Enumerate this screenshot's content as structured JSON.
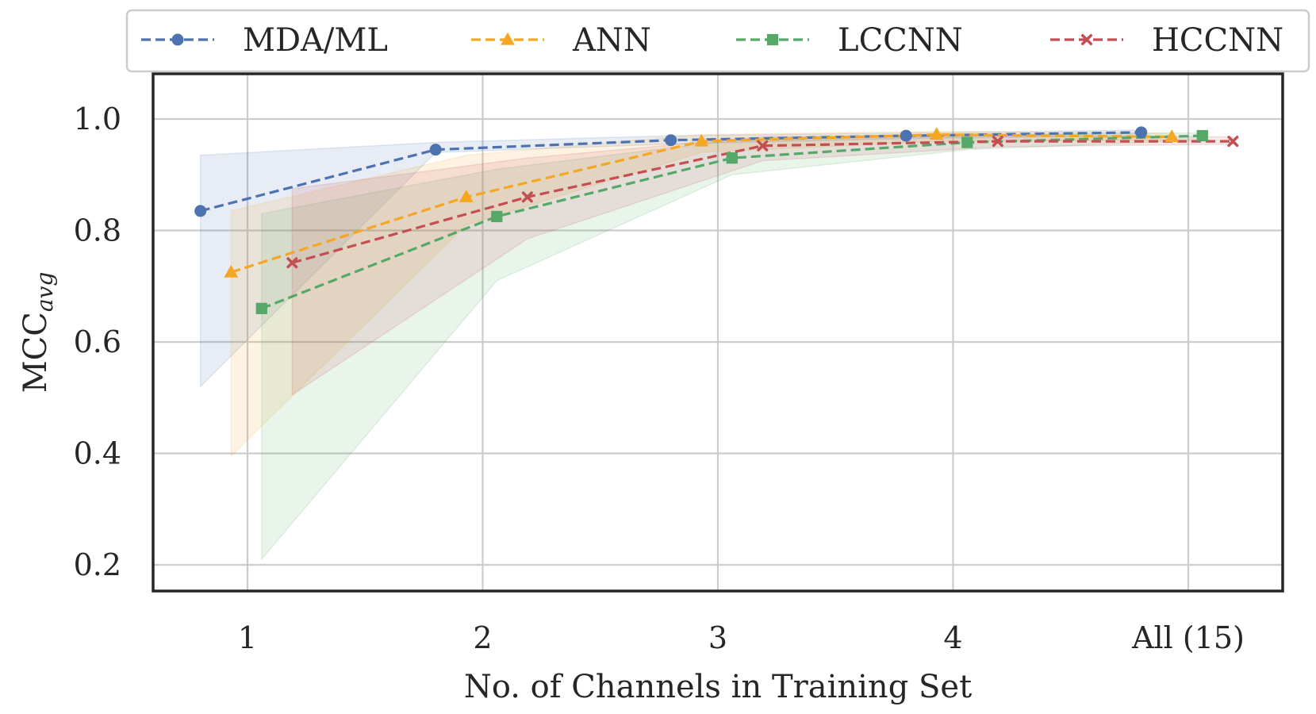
{
  "chart_data": {
    "type": "line",
    "title": "",
    "xlabel": "No. of Channels in Training Set",
    "ylabel_main": "MCC",
    "ylabel_sub": "avg",
    "categories": [
      "1",
      "2",
      "3",
      "4",
      "All (15)"
    ],
    "ylim": [
      0.15,
      1.1
    ],
    "yticks": [
      0.2,
      0.4,
      0.6,
      0.8,
      1.0
    ],
    "ytick_labels": [
      "0.2",
      "0.4",
      "0.6",
      "0.8",
      "1.0"
    ],
    "grid": true,
    "legend_position": "top",
    "series": [
      {
        "name": "MDA/ML",
        "color": "#4c72b0",
        "marker": "circle",
        "offset": -0.2,
        "values": [
          0.835,
          0.945,
          0.962,
          0.97,
          0.976
        ],
        "band_lower": [
          0.52,
          0.94,
          0.955,
          0.965,
          0.97
        ],
        "band_upper": [
          0.935,
          0.958,
          0.97,
          0.975,
          0.98
        ]
      },
      {
        "name": "ANN",
        "color": "#f5a623",
        "marker": "triangle",
        "offset": -0.07,
        "values": [
          0.725,
          0.86,
          0.96,
          0.972,
          0.968
        ],
        "band_lower": [
          0.395,
          0.81,
          0.94,
          0.96,
          0.962
        ],
        "band_upper": [
          0.835,
          0.935,
          0.972,
          0.978,
          0.975
        ]
      },
      {
        "name": "LCCNN",
        "color": "#55a868",
        "marker": "square",
        "offset": 0.06,
        "values": [
          0.66,
          0.825,
          0.93,
          0.958,
          0.97
        ],
        "band_lower": [
          0.21,
          0.71,
          0.9,
          0.945,
          0.962
        ],
        "band_upper": [
          0.83,
          0.91,
          0.962,
          0.972,
          0.975
        ]
      },
      {
        "name": "HCCNN",
        "color": "#c44e52",
        "marker": "x",
        "offset": 0.19,
        "values": [
          0.742,
          0.86,
          0.952,
          0.96,
          0.96
        ],
        "band_lower": [
          0.505,
          0.785,
          0.925,
          0.95,
          0.955
        ],
        "band_upper": [
          0.875,
          0.93,
          0.968,
          0.97,
          0.968
        ]
      }
    ]
  }
}
